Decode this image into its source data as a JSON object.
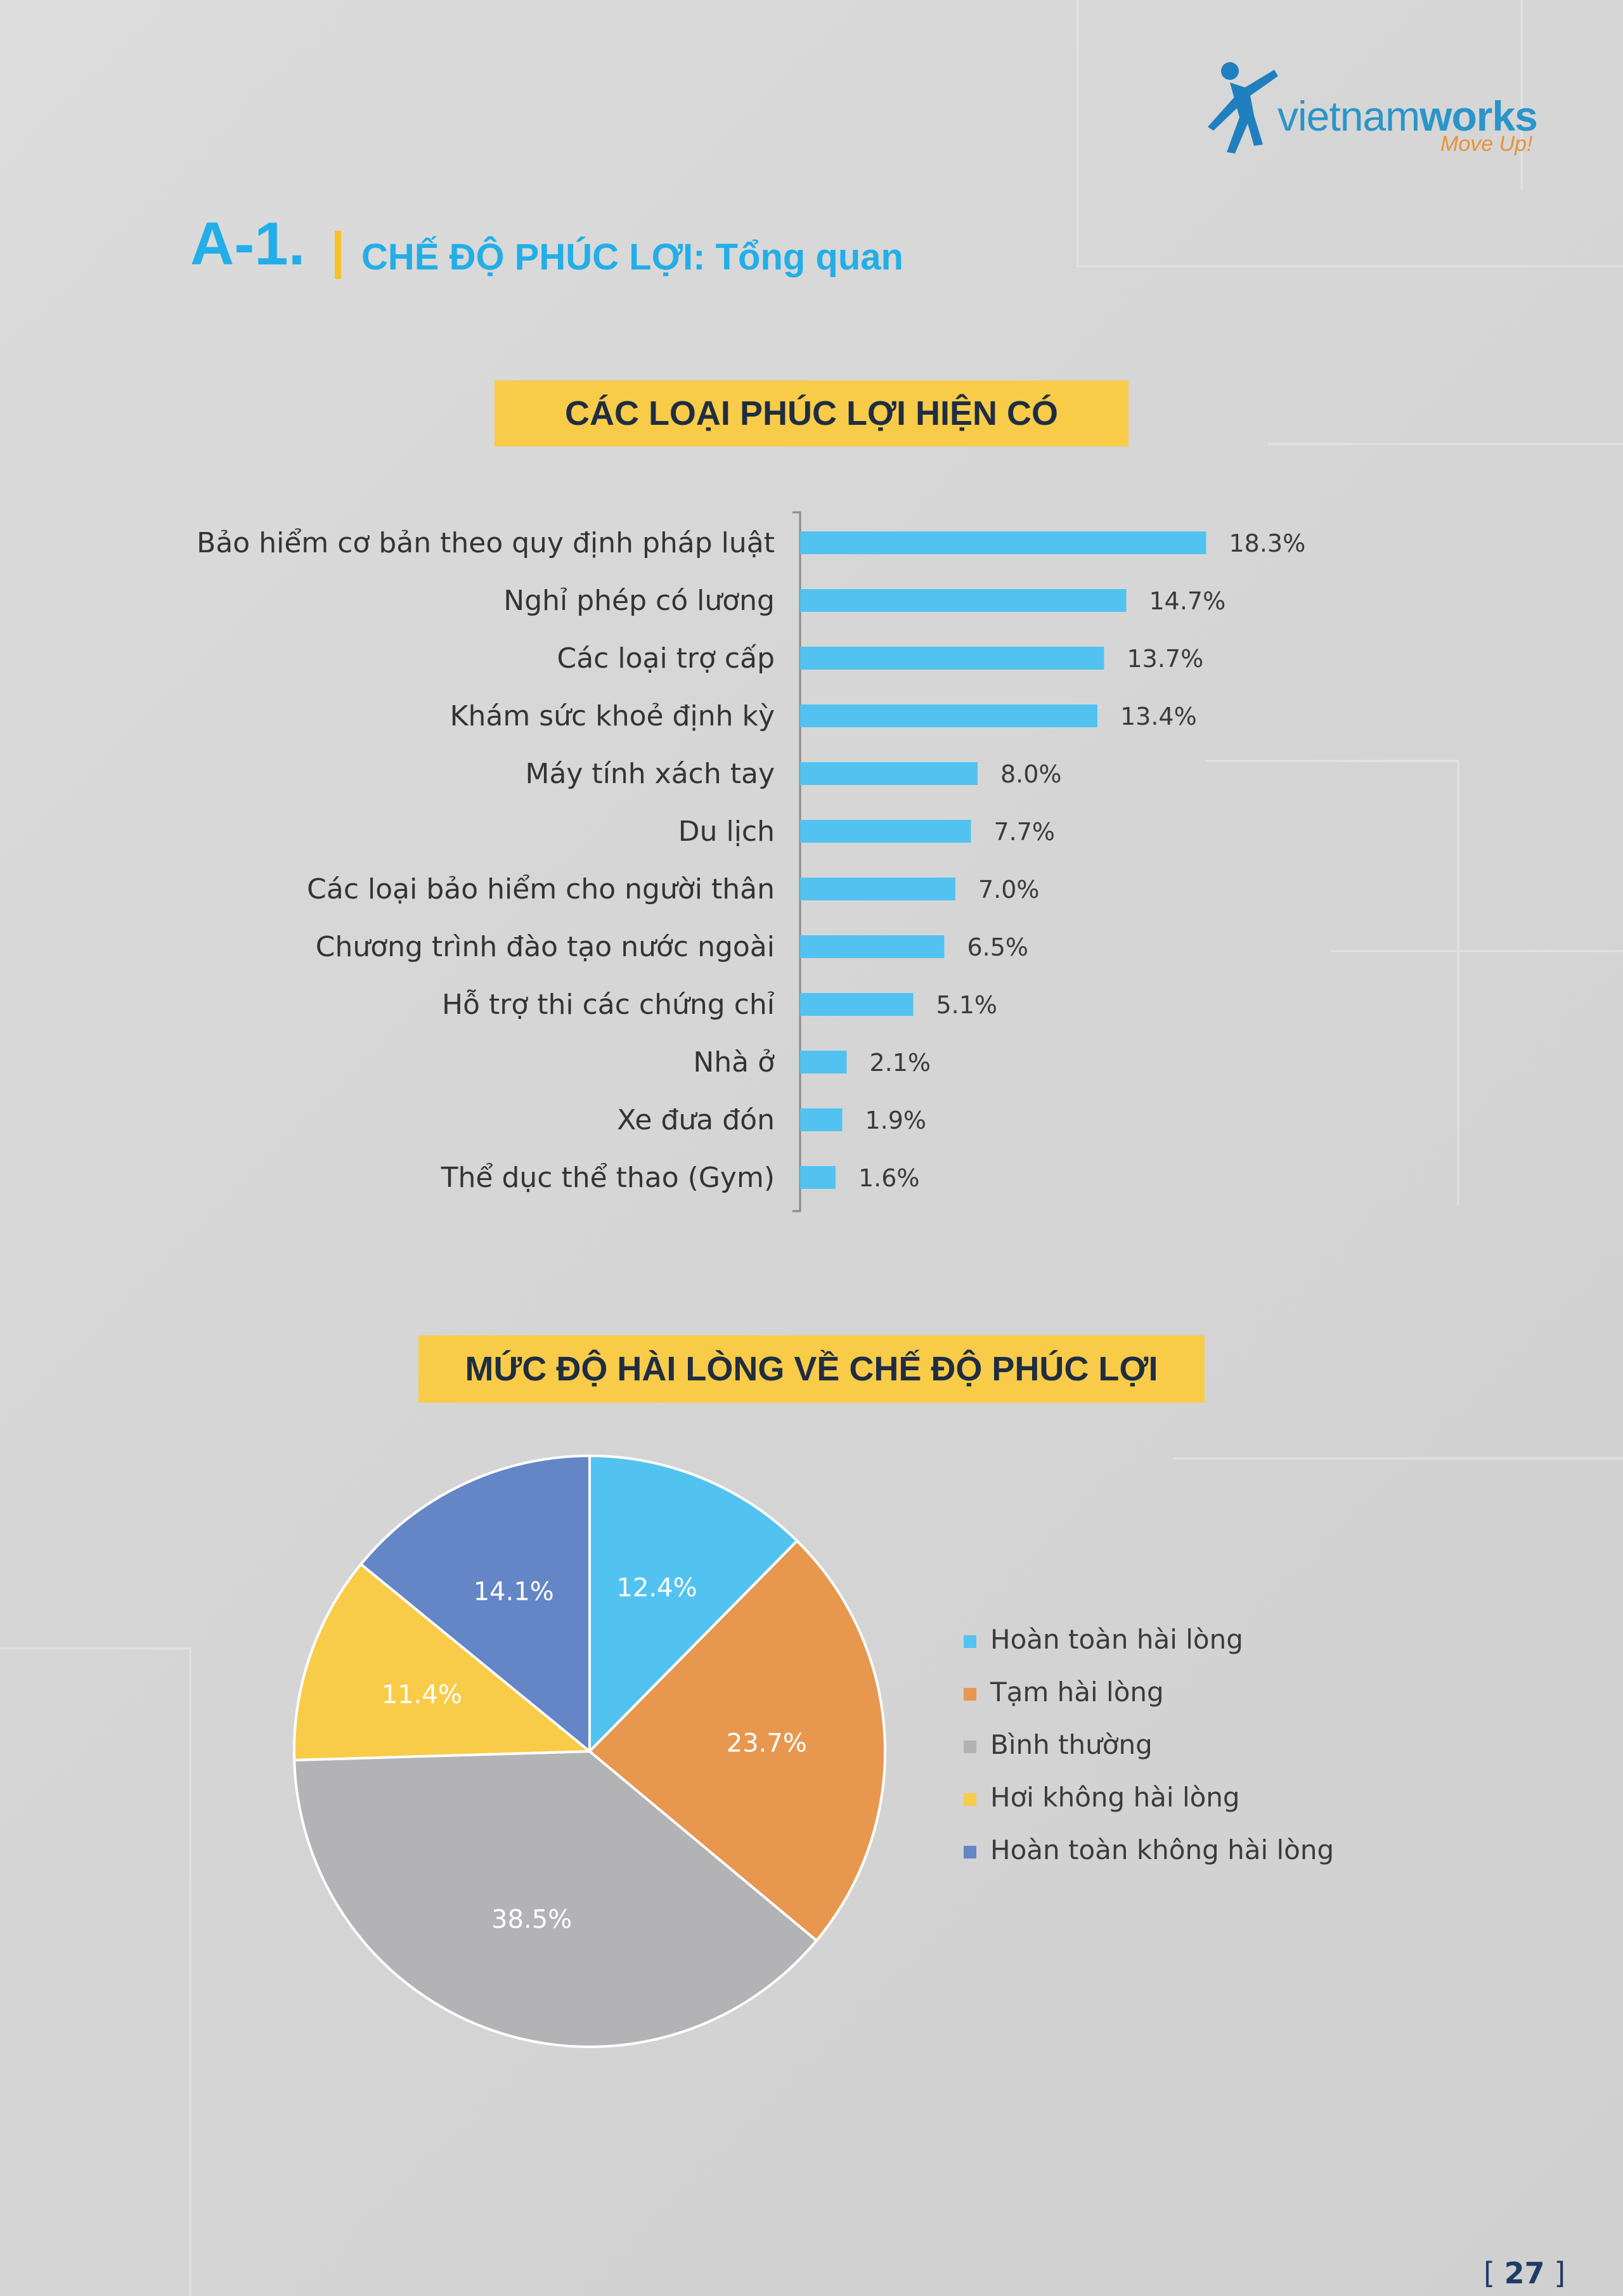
{
  "brand": {
    "name_light": "vietnam",
    "name_bold": "works",
    "tagline": "Move Up!"
  },
  "heading": {
    "code": "A-1.",
    "title": "CHẾ ĐỘ PHÚC LỢI: Tổng quan"
  },
  "chart_data": [
    {
      "type": "bar",
      "orientation": "horizontal",
      "title": "CÁC LOẠI PHÚC LỢI HIỆN CÓ",
      "categories": [
        "Bảo hiểm cơ bản theo quy định pháp luật",
        "Nghỉ phép có lương",
        "Các loại trợ cấp",
        "Khám sức khoẻ định kỳ",
        "Máy tính xách tay",
        "Du lịch",
        "Các loại bảo hiểm cho người thân",
        "Chương trình đào tạo nước ngoài",
        "Hỗ trợ thi các chứng chỉ",
        "Nhà ở",
        "Xe đưa đón",
        "Thể dục thể thao (Gym)"
      ],
      "values": [
        18.3,
        14.7,
        13.7,
        13.4,
        8.0,
        7.7,
        7.0,
        6.5,
        5.1,
        2.1,
        1.9,
        1.6
      ],
      "value_labels": [
        "18.3%",
        "14.7%",
        "13.7%",
        "13.4%",
        "8.0%",
        "7.7%",
        "7.0%",
        "6.5%",
        "5.1%",
        "2.1%",
        "1.9%",
        "1.6%"
      ],
      "xlim": [
        0,
        20
      ],
      "grid": false,
      "bar_color": "#52c3f0"
    },
    {
      "type": "pie",
      "title": "MỨC ĐỘ HÀI LÒNG VỀ CHẾ ĐỘ PHÚC LỢI",
      "categories": [
        "Hoàn toàn hài lòng",
        "Tạm hài lòng",
        "Bình thường",
        "Hơi không hài lòng",
        "Hoàn toàn không hài lòng"
      ],
      "values": [
        12.4,
        23.7,
        38.5,
        11.4,
        14.1
      ],
      "value_labels": [
        "12.4%",
        "23.7%",
        "38.5%",
        "11.4%",
        "14.1%"
      ],
      "colors": [
        "#52c3f0",
        "#e8974f",
        "#b3b3b5",
        "#f8cc48",
        "#6486c6"
      ],
      "legend": "right"
    }
  ],
  "page_number": "27"
}
